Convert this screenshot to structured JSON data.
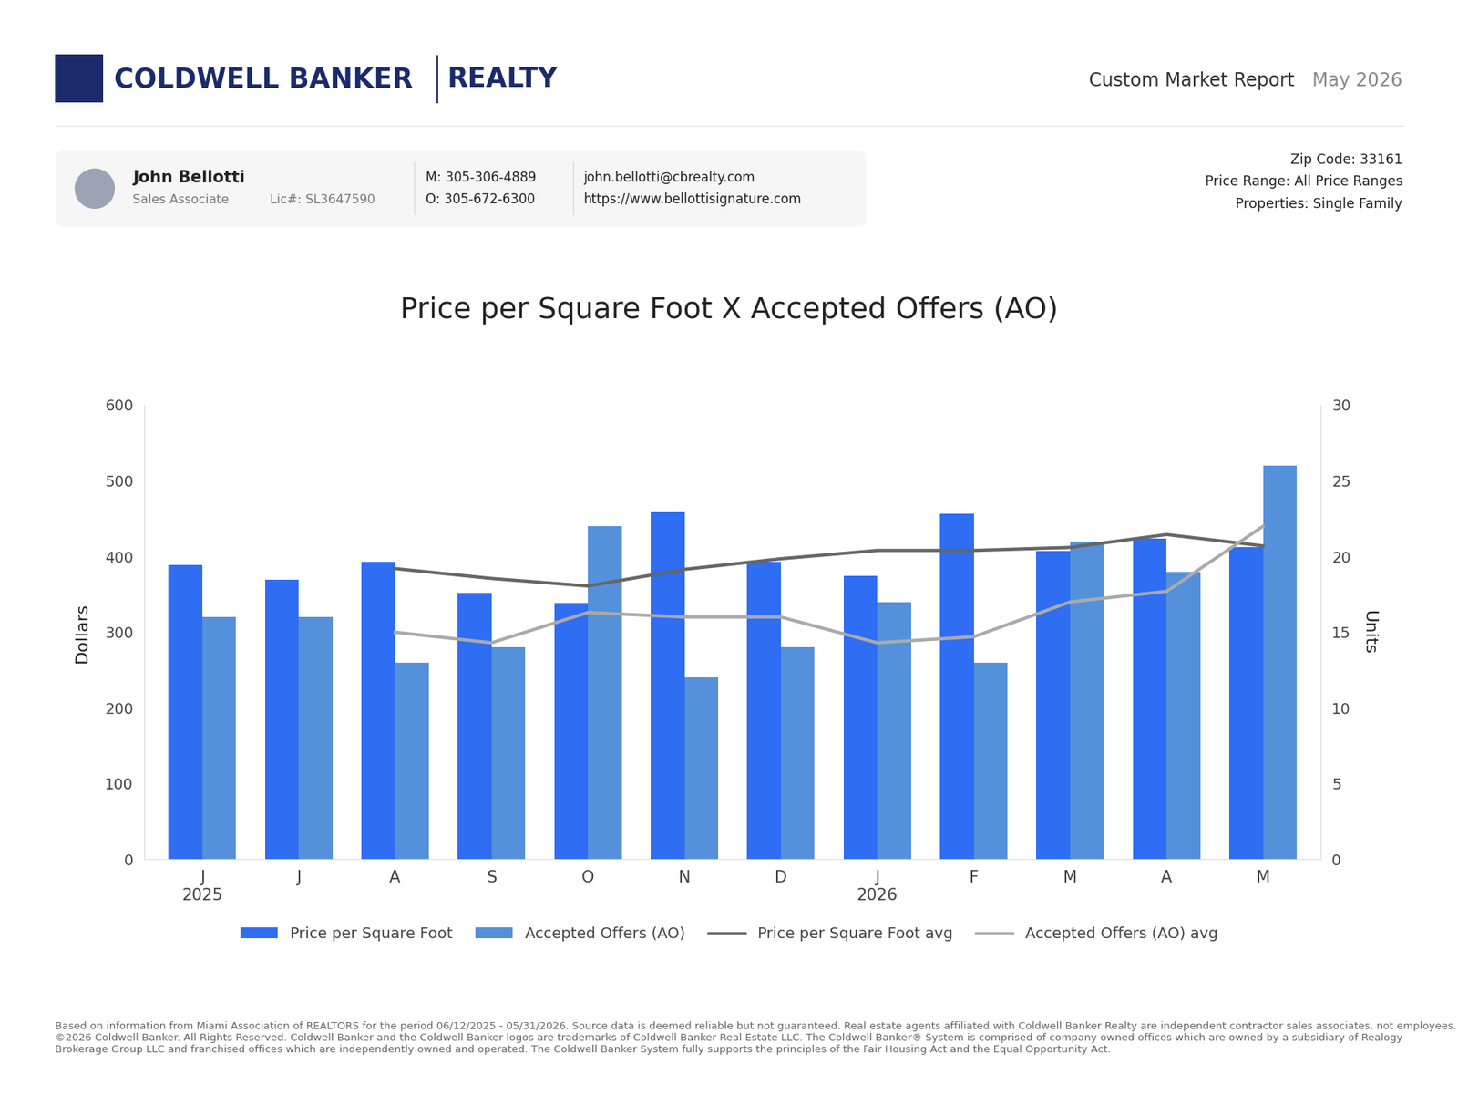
{
  "header": {
    "brand": [
      "COLDWELL BANKER",
      "REALTY"
    ],
    "report_title": "Custom Market Report",
    "report_date": "May 2026"
  },
  "agent": {
    "name": "John Bellotti",
    "role": "Sales Associate",
    "license": "Lic#: SL3647590",
    "mobile": "M: 305-306-4889",
    "office": "O: 305-672-6300",
    "email": "john.bellotti@cbrealty.com",
    "website": "https://www.bellottisignature.com"
  },
  "filters": [
    "Zip Code: 33161",
    "Price Range: All Price Ranges",
    "Properties: Single Family"
  ],
  "chart_data": {
    "type": "bar",
    "title": "Price per Square Foot X Accepted Offers (AO)",
    "y_label": "Dollars",
    "y2_label": "Units",
    "categories": [
      "J\n2025",
      "J",
      "A",
      "S",
      "O",
      "N",
      "D",
      "J\n2026",
      "F",
      "M",
      "A",
      "M"
    ],
    "series": [
      {
        "name": "Price per Square Foot",
        "type": "bar",
        "color": "#2f6df2",
        "axis": "y",
        "values": [
          389,
          369,
          393,
          352,
          339,
          459,
          393,
          374,
          456,
          407,
          424,
          412
        ]
      },
      {
        "name": "Accepted Offers (AO)",
        "type": "bar",
        "color": "#5590db",
        "axis": "y2",
        "values": [
          16,
          16,
          13,
          14,
          22,
          12,
          14,
          17,
          13,
          21,
          19,
          26
        ]
      },
      {
        "name": "Price per Square Foot avg",
        "type": "line",
        "color": "#666666",
        "axis": "y",
        "values": [
          null,
          null,
          384,
          371,
          361,
          383,
          397,
          408,
          408,
          412,
          429,
          414
        ]
      },
      {
        "name": "Accepted Offers (AO) avg",
        "type": "line",
        "color": "#aaaaaa",
        "axis": "y2",
        "values": [
          null,
          null,
          15,
          14.3,
          16.3,
          16,
          16,
          14.3,
          14.7,
          17,
          17.7,
          22
        ]
      }
    ],
    "ylim": [
      0,
      600
    ],
    "yticks": [
      0,
      100,
      200,
      300,
      400,
      500,
      600
    ],
    "y2lim": [
      0,
      30
    ],
    "y2ticks": [
      0,
      5,
      10,
      15,
      20,
      25,
      30
    ],
    "grid": false,
    "legend": "bottom"
  },
  "footer": "Based on information from Miami Association of REALTORS for the period 06/12/2025 - 05/31/2026. Source data is deemed reliable but not guaranteed. Real estate agents affiliated with Coldwell Banker Realty are independent contractor sales associates, not employees. ©2026 Coldwell Banker. All Rights Reserved. Coldwell Banker and the Coldwell Banker logos are trademarks of Coldwell Banker Real Estate LLC. The Coldwell Banker® System is comprised of company owned offices which are owned by a subsidiary of Realogy Brokerage Group LLC and franchised offices which are independently owned and operated. The Coldwell Banker System fully supports the principles of the Fair Housing Act and the Equal Opportunity Act."
}
